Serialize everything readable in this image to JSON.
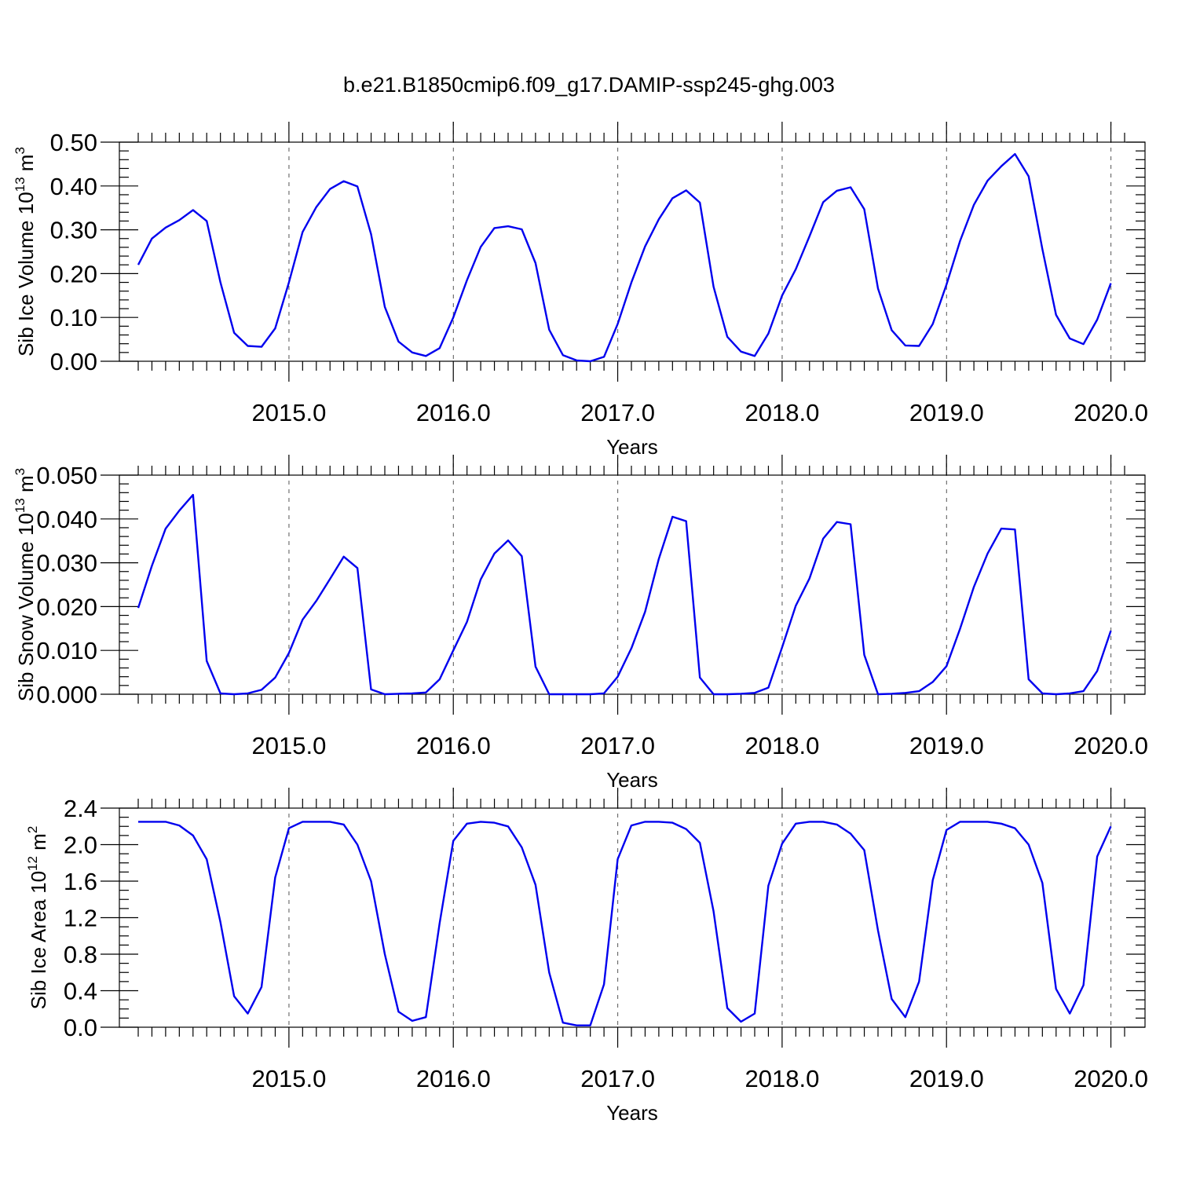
{
  "figure_title": "b.e21.B1850cmip6.f09_g17.DAMIP-ssp245-ghg.003",
  "colors": {
    "series": "#0000ee",
    "grid": "#555555",
    "axis": "#000000"
  },
  "chart_data": [
    {
      "type": "line",
      "title": "",
      "xlabel": "Years",
      "ylabel": "Sib Ice Volume 10",
      "ylabel_sup1": "13",
      "ylabel_unit": " m",
      "ylabel_sup2": "3",
      "xlim": [
        2014.083,
        2020.083
      ],
      "ylim": [
        0,
        0.5
      ],
      "x_major_ticks": [
        2015,
        2016,
        2017,
        2018,
        2019,
        2020
      ],
      "x_tick_labels": [
        "2015.0",
        "2016.0",
        "2017.0",
        "2018.0",
        "2019.0",
        "2020.0"
      ],
      "y_major_ticks": [
        0,
        0.1,
        0.2,
        0.3,
        0.4,
        0.5
      ],
      "y_tick_labels": [
        "0.00",
        "0.10",
        "0.20",
        "0.30",
        "0.40",
        "0.50"
      ],
      "grid": "vertical dashed at major x ticks",
      "x_start": 2014.083,
      "x_step": 0.08333,
      "values": [
        0.22,
        0.28,
        0.305,
        0.322,
        0.345,
        0.32,
        0.18,
        0.065,
        0.035,
        0.033,
        0.075,
        0.18,
        0.295,
        0.352,
        0.393,
        0.411,
        0.399,
        0.29,
        0.124,
        0.045,
        0.02,
        0.012,
        0.03,
        0.1,
        0.185,
        0.261,
        0.304,
        0.308,
        0.301,
        0.224,
        0.072,
        0.014,
        0.002,
        0.0,
        0.01,
        0.085,
        0.18,
        0.262,
        0.324,
        0.372,
        0.39,
        0.362,
        0.17,
        0.056,
        0.022,
        0.012,
        0.063,
        0.15,
        0.21,
        0.285,
        0.363,
        0.389,
        0.397,
        0.347,
        0.166,
        0.071,
        0.036,
        0.035,
        0.085,
        0.175,
        0.275,
        0.357,
        0.412,
        0.445,
        0.473,
        0.422,
        0.256,
        0.106,
        0.052,
        0.039,
        0.095,
        0.178
      ]
    },
    {
      "type": "line",
      "title": "",
      "xlabel": "Years",
      "ylabel": "Sib Snow Volume 10",
      "ylabel_sup1": "13",
      "ylabel_unit": " m",
      "ylabel_sup2": "3",
      "xlim": [
        2014.083,
        2020.083
      ],
      "ylim": [
        0,
        0.05
      ],
      "x_major_ticks": [
        2015,
        2016,
        2017,
        2018,
        2019,
        2020
      ],
      "x_tick_labels": [
        "2015.0",
        "2016.0",
        "2017.0",
        "2018.0",
        "2019.0",
        "2020.0"
      ],
      "y_major_ticks": [
        0,
        0.01,
        0.02,
        0.03,
        0.04,
        0.05
      ],
      "y_tick_labels": [
        "0.000",
        "0.010",
        "0.020",
        "0.030",
        "0.040",
        "0.050"
      ],
      "grid": "vertical dashed at major x ticks",
      "x_start": 2014.083,
      "x_step": 0.08333,
      "values": [
        0.0197,
        0.0293,
        0.0378,
        0.0419,
        0.0455,
        0.0076,
        0.0002,
        0.0,
        0.0002,
        0.001,
        0.0038,
        0.0094,
        0.017,
        0.0213,
        0.0263,
        0.0314,
        0.0288,
        0.0011,
        0.0,
        0.0001,
        0.0002,
        0.0004,
        0.0034,
        0.01,
        0.0165,
        0.0262,
        0.0321,
        0.0351,
        0.0315,
        0.0063,
        0.0,
        0.0,
        0.0,
        0.0,
        0.0002,
        0.004,
        0.0105,
        0.0188,
        0.0309,
        0.0405,
        0.0395,
        0.0038,
        0.0,
        0.0,
        0.0001,
        0.0003,
        0.0015,
        0.0107,
        0.0202,
        0.0264,
        0.0355,
        0.0393,
        0.0388,
        0.009,
        0.0,
        0.0001,
        0.0003,
        0.0007,
        0.0028,
        0.0064,
        0.015,
        0.0245,
        0.0321,
        0.0378,
        0.0376,
        0.0034,
        0.0002,
        0.0,
        0.0002,
        0.0007,
        0.0053,
        0.0145
      ]
    },
    {
      "type": "line",
      "title": "",
      "xlabel": "Years",
      "ylabel": "Sib Ice Area 10",
      "ylabel_sup1": "12",
      "ylabel_unit": " m",
      "ylabel_sup2": "2",
      "xlim": [
        2014.083,
        2020.083
      ],
      "ylim": [
        0,
        2.4
      ],
      "x_major_ticks": [
        2015,
        2016,
        2017,
        2018,
        2019,
        2020
      ],
      "x_tick_labels": [
        "2015.0",
        "2016.0",
        "2017.0",
        "2018.0",
        "2019.0",
        "2020.0"
      ],
      "y_major_ticks": [
        0,
        0.4,
        0.8,
        1.2,
        1.6,
        2.0,
        2.4
      ],
      "y_tick_labels": [
        "0.0",
        "0.4",
        "0.8",
        "1.2",
        "1.6",
        "2.0",
        "2.4"
      ],
      "grid": "vertical dashed at major x ticks",
      "x_start": 2014.083,
      "x_step": 0.08333,
      "values": [
        2.25,
        2.25,
        2.25,
        2.21,
        2.1,
        1.84,
        1.15,
        0.34,
        0.15,
        0.44,
        1.64,
        2.18,
        2.25,
        2.25,
        2.25,
        2.22,
        2.0,
        1.6,
        0.8,
        0.17,
        0.07,
        0.11,
        1.14,
        2.04,
        2.23,
        2.25,
        2.24,
        2.2,
        1.97,
        1.56,
        0.6,
        0.05,
        0.02,
        0.02,
        0.47,
        1.84,
        2.21,
        2.25,
        2.25,
        2.24,
        2.17,
        2.02,
        1.27,
        0.21,
        0.06,
        0.15,
        1.55,
        2.01,
        2.23,
        2.25,
        2.25,
        2.22,
        2.12,
        1.94,
        1.06,
        0.31,
        0.11,
        0.5,
        1.61,
        2.16,
        2.25,
        2.25,
        2.25,
        2.23,
        2.18,
        2.0,
        1.58,
        0.42,
        0.15,
        0.46,
        1.87,
        2.2
      ]
    }
  ]
}
